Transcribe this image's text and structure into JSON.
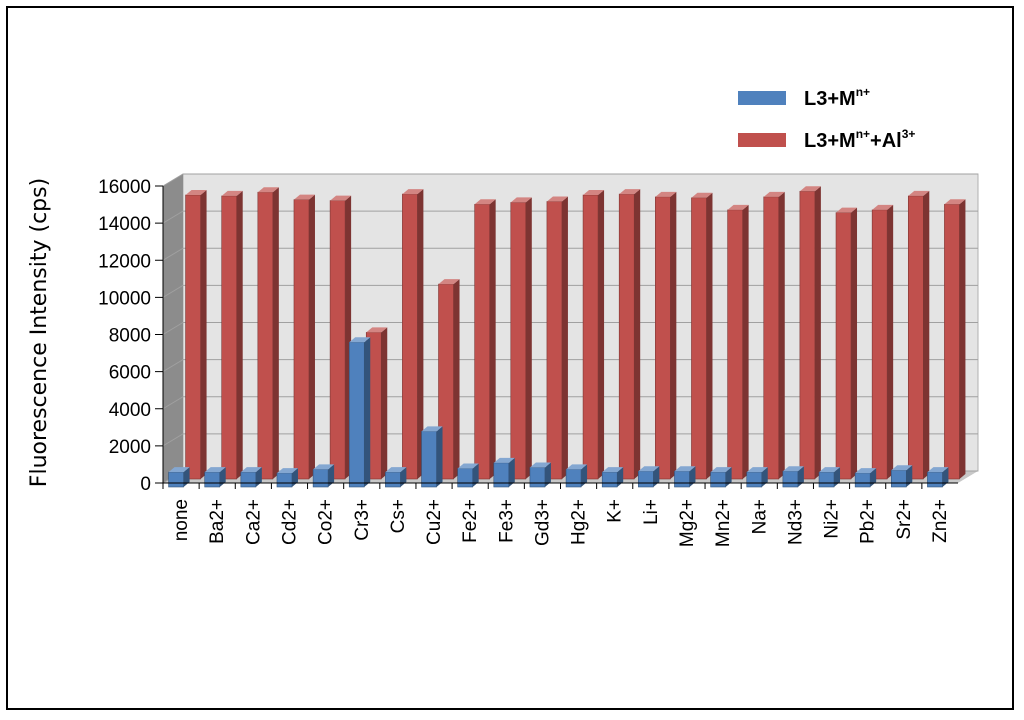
{
  "chart_data": {
    "type": "bar",
    "title": "",
    "xlabel": "",
    "ylabel": "Fluorescence Intensity (cps)",
    "ylim": [
      0,
      16000
    ],
    "ytick_step": 2000,
    "yticks": [
      "0",
      "2000",
      "4000",
      "6000",
      "8000",
      "10000",
      "12000",
      "14000",
      "16000"
    ],
    "grid": true,
    "legend_position": "top-right",
    "categories": [
      "none",
      "Ba2+",
      "Ca2+",
      "Cd2+",
      "Co2+",
      "Cr3+",
      "Cs+",
      "Cu2+",
      "Fe2+",
      "Fe3+",
      "Gd3+",
      "Hg2+",
      "K+",
      "Li+",
      "Mg2+",
      "Mn2+",
      "Na+",
      "Nd3+",
      "Ni2+",
      "Pb2+",
      "Sr2+",
      "Zn2+"
    ],
    "series": [
      {
        "name": "L3+M",
        "name_sup": "n+",
        "name_suffix": "",
        "name_suffix_sup": "",
        "color": "#4f81bd",
        "values": [
          800,
          800,
          800,
          750,
          950,
          7800,
          800,
          3000,
          1000,
          1300,
          1050,
          950,
          800,
          850,
          850,
          800,
          800,
          850,
          800,
          750,
          900,
          800
        ]
      },
      {
        "name": "L3+M",
        "name_sup": "n+",
        "name_suffix": "+Al",
        "name_suffix_sup": "3+",
        "color": "#c0504d",
        "values": [
          15300,
          15250,
          15450,
          15050,
          15000,
          7900,
          15350,
          10500,
          14800,
          14900,
          14950,
          15300,
          15350,
          15200,
          15150,
          14500,
          15200,
          15500,
          14350,
          14500,
          15250,
          14800
        ]
      }
    ]
  }
}
